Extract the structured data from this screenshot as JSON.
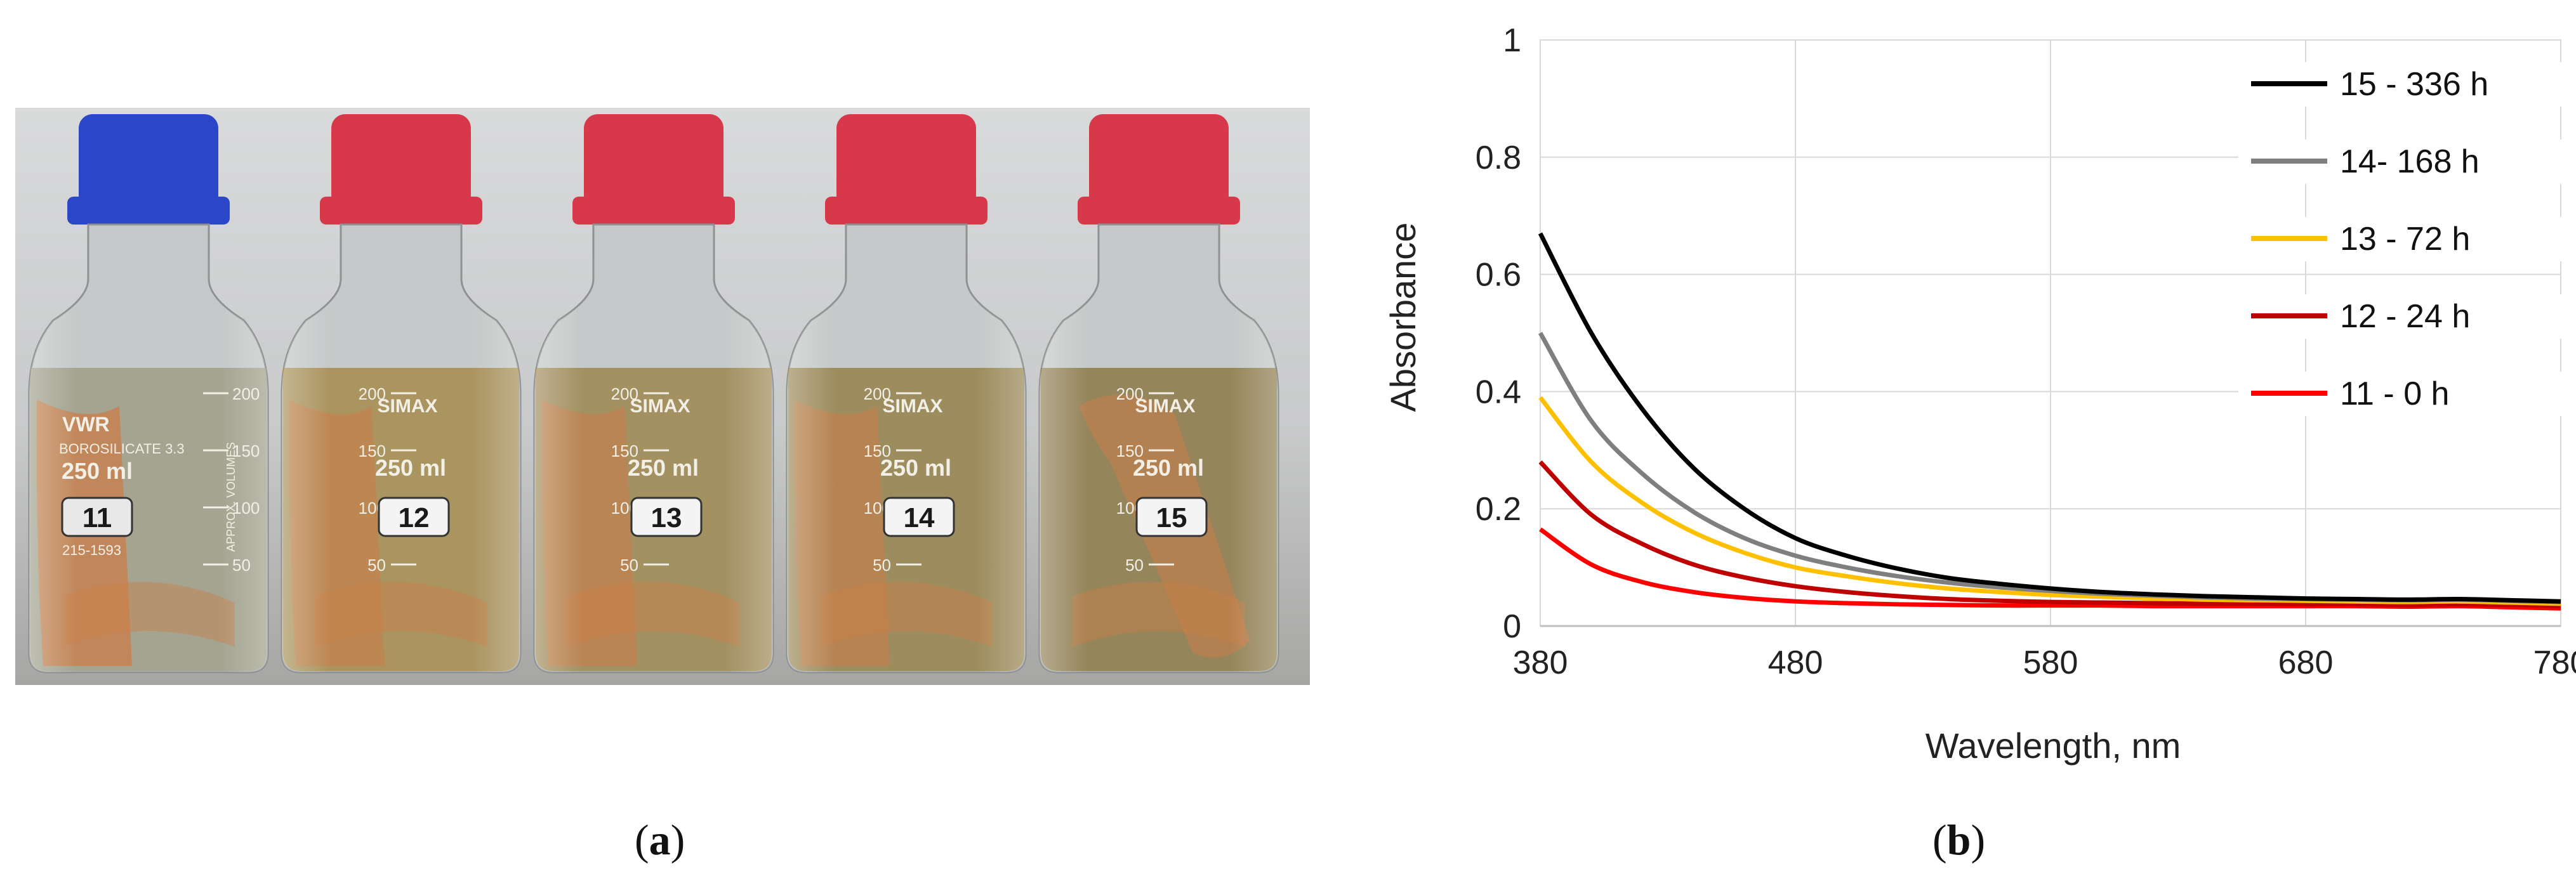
{
  "photo": {
    "bottles": [
      {
        "cap_color": "#2b47c9",
        "tag_number": "11",
        "volume_label": "250 ml",
        "brand_text": "VWR",
        "glass_text": "BOROSILICATE 3.3",
        "approx_text": "APPROX. VOLUMES",
        "code_text": "215-1593",
        "grad_labels": [
          "200",
          "150",
          "100",
          "50"
        ],
        "liquid_color": "#9c9b86",
        "has_copper_in_bottle": true
      },
      {
        "cap_color": "#d8394a",
        "tag_number": "12",
        "volume_label": "250 ml",
        "brand_text": "SIMAX",
        "grad_labels": [
          "200",
          "150",
          "100",
          "50"
        ],
        "liquid_color": "#a48a4e",
        "has_copper_in_bottle": true
      },
      {
        "cap_color": "#d8394a",
        "tag_number": "13",
        "volume_label": "250 ml",
        "brand_text": "SIMAX",
        "grad_labels": [
          "200",
          "150",
          "100",
          "50"
        ],
        "liquid_color": "#9c8650",
        "has_copper_in_bottle": true
      },
      {
        "cap_color": "#d8394a",
        "tag_number": "14",
        "volume_label": "250 ml",
        "brand_text": "SIMAX",
        "grad_labels": [
          "200",
          "150",
          "100",
          "50"
        ],
        "liquid_color": "#95814c",
        "has_copper_in_bottle": true
      },
      {
        "cap_color": "#d8394a",
        "tag_number": "15",
        "volume_label": "250 ml",
        "brand_text": "SIMAX",
        "grad_labels": [
          "200",
          "150",
          "100",
          "50"
        ],
        "liquid_color": "#8b7848",
        "has_copper_in_bottle": true
      }
    ],
    "copper_color": "#c8773f"
  },
  "panel_labels": {
    "a": "a",
    "b": "b"
  },
  "chart_data": {
    "type": "line",
    "title": "",
    "xlabel": "Wavelength, nm",
    "ylabel": "Absorbance",
    "xlim": [
      380,
      780
    ],
    "ylim": [
      0,
      1
    ],
    "xticks": [
      380,
      480,
      580,
      680,
      780
    ],
    "yticks": [
      0,
      0.2,
      0.4,
      0.6,
      0.8,
      1
    ],
    "ytick_labels": [
      "0",
      "0.2",
      "0.4",
      "0.6",
      "0.8",
      "1"
    ],
    "grid": true,
    "legend_position": "top-right",
    "series": [
      {
        "name": "15 - 336 h",
        "color": "#000000",
        "x": [
          380,
          400,
          420,
          440,
          460,
          480,
          500,
          520,
          540,
          560,
          580,
          600,
          620,
          640,
          660,
          680,
          700,
          720,
          740,
          760,
          780
        ],
        "y": [
          0.67,
          0.5,
          0.37,
          0.27,
          0.2,
          0.15,
          0.12,
          0.098,
          0.082,
          0.072,
          0.064,
          0.058,
          0.054,
          0.051,
          0.049,
          0.047,
          0.046,
          0.045,
          0.046,
          0.044,
          0.042
        ]
      },
      {
        "name": "14- 168 h",
        "color": "#7f7f7f",
        "x": [
          380,
          400,
          420,
          440,
          460,
          480,
          500,
          520,
          540,
          560,
          580,
          600,
          620,
          640,
          660,
          680,
          700,
          720,
          740,
          760,
          780
        ],
        "y": [
          0.5,
          0.35,
          0.26,
          0.195,
          0.15,
          0.12,
          0.1,
          0.085,
          0.074,
          0.066,
          0.06,
          0.055,
          0.052,
          0.049,
          0.047,
          0.046,
          0.045,
          0.044,
          0.045,
          0.043,
          0.041
        ]
      },
      {
        "name": "13 - 72 h",
        "color": "#ffc000",
        "x": [
          380,
          400,
          420,
          440,
          460,
          480,
          500,
          520,
          540,
          560,
          580,
          600,
          620,
          640,
          660,
          680,
          700,
          720,
          740,
          760,
          780
        ],
        "y": [
          0.39,
          0.28,
          0.21,
          0.16,
          0.125,
          0.1,
          0.085,
          0.073,
          0.064,
          0.058,
          0.053,
          0.05,
          0.047,
          0.045,
          0.044,
          0.043,
          0.042,
          0.041,
          0.042,
          0.04,
          0.038
        ]
      },
      {
        "name": "12 - 24 h",
        "color": "#c00000",
        "x": [
          380,
          400,
          420,
          440,
          460,
          480,
          500,
          520,
          540,
          560,
          580,
          600,
          620,
          640,
          660,
          680,
          700,
          720,
          740,
          760,
          780
        ],
        "y": [
          0.28,
          0.19,
          0.14,
          0.105,
          0.083,
          0.068,
          0.058,
          0.051,
          0.046,
          0.043,
          0.041,
          0.04,
          0.039,
          0.038,
          0.038,
          0.037,
          0.037,
          0.036,
          0.037,
          0.036,
          0.034
        ]
      },
      {
        "name": "11 - 0 h",
        "color": "#ff0000",
        "x": [
          380,
          400,
          420,
          440,
          460,
          480,
          500,
          520,
          540,
          560,
          580,
          600,
          620,
          640,
          660,
          680,
          700,
          720,
          740,
          760,
          780
        ],
        "y": [
          0.165,
          0.105,
          0.075,
          0.058,
          0.048,
          0.042,
          0.039,
          0.037,
          0.036,
          0.035,
          0.035,
          0.035,
          0.034,
          0.034,
          0.034,
          0.034,
          0.034,
          0.033,
          0.034,
          0.032,
          0.03
        ]
      }
    ]
  }
}
